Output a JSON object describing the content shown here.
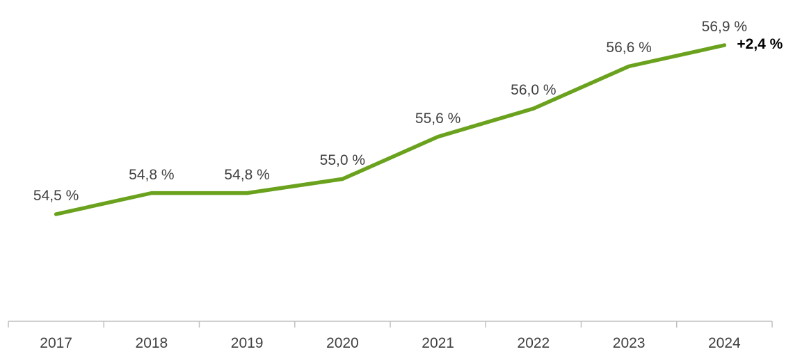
{
  "chart_data": {
    "type": "line",
    "title": "",
    "xlabel": "",
    "ylabel": "",
    "categories": [
      "2017",
      "2018",
      "2019",
      "2020",
      "2021",
      "2022",
      "2023",
      "2024"
    ],
    "values": [
      54.5,
      54.8,
      54.8,
      55.0,
      55.6,
      56.0,
      56.6,
      56.9
    ],
    "value_labels": [
      "54,5 %",
      "54,8 %",
      "54,8 %",
      "55,0 %",
      "55,6 %",
      "56,0 %",
      "56,6 %",
      "56,9 %"
    ],
    "annotation": "+2,4 %",
    "ylim": [
      54.0,
      57.5
    ],
    "grid": false,
    "legend": "none",
    "colors": {
      "line": "#6aa21e",
      "value_label": "#404040",
      "year_label": "#404040",
      "annotation": "#000000",
      "axis": "#bfbfbf"
    }
  }
}
